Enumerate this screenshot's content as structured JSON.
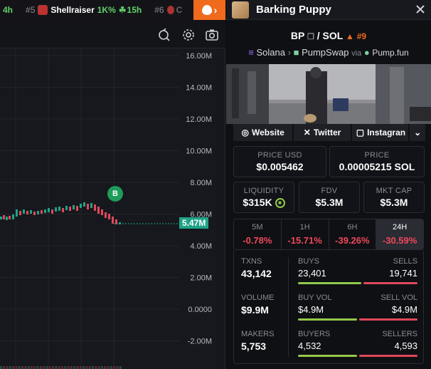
{
  "ticker": {
    "items": [
      {
        "rank": "",
        "name": "",
        "time": "4h"
      },
      {
        "rank": "#5",
        "name": "Shellraiser",
        "vol": "1K%",
        "time": "15h"
      },
      {
        "rank": "#6",
        "name": "C",
        "time": ""
      }
    ]
  },
  "chart": {
    "y_ticks": [
      "16.00M",
      "14.00M",
      "12.00M",
      "10.00M",
      "8.00M",
      "6.00M",
      "4.00M",
      "2.00M",
      "0.0000",
      "-2.00M"
    ],
    "current_price_tag": "5.47M",
    "buy_marker": "B",
    "colors": {
      "up": "#1fa387",
      "down": "#e0485a",
      "marker": "#1f9c5a"
    }
  },
  "token": {
    "name": "Barking Puppy",
    "pair_base": "BP",
    "pair_sep": "/",
    "pair_quote": "SOL",
    "rank": "#9",
    "chain": "Solana",
    "dex": "PumpSwap",
    "via": "via",
    "launchpad": "Pump.fun"
  },
  "socials": {
    "website": "Website",
    "twitter": "Twitter",
    "instagram": "Instagran"
  },
  "metrics": {
    "price_usd_label": "PRICE USD",
    "price_usd": "$0.005462",
    "price_label": "PRICE",
    "price_sol": "0.00005215 SOL",
    "liquidity_label": "LIQUIDITY",
    "liquidity": "$315K",
    "fdv_label": "FDV",
    "fdv": "$5.3M",
    "mktcap_label": "MKT CAP",
    "mktcap": "$5.3M"
  },
  "changes": [
    {
      "label": "5M",
      "value": "-0.78%"
    },
    {
      "label": "1H",
      "value": "-15.71%"
    },
    {
      "label": "6H",
      "value": "-39.26%"
    },
    {
      "label": "24H",
      "value": "-30.59%"
    }
  ],
  "stats": {
    "txns_label": "TXNS",
    "txns": "43,142",
    "buys_label": "BUYS",
    "buys": "23,401",
    "sells_label": "SELLS",
    "sells": "19,741",
    "volume_label": "VOLUME",
    "volume": "$9.9M",
    "buyvol_label": "BUY VOL",
    "buyvol": "$4.9M",
    "sellvol_label": "SELL VOL",
    "sellvol": "$4.9M",
    "makers_label": "MAKERS",
    "makers": "5,753",
    "buyers_label": "BUYERS",
    "buyers": "4,532",
    "sellers_label": "SELLERS",
    "sellers": "4,593",
    "buys_ratio": 0.54,
    "buyvol_ratio": 0.5,
    "buyers_ratio": 0.5
  }
}
